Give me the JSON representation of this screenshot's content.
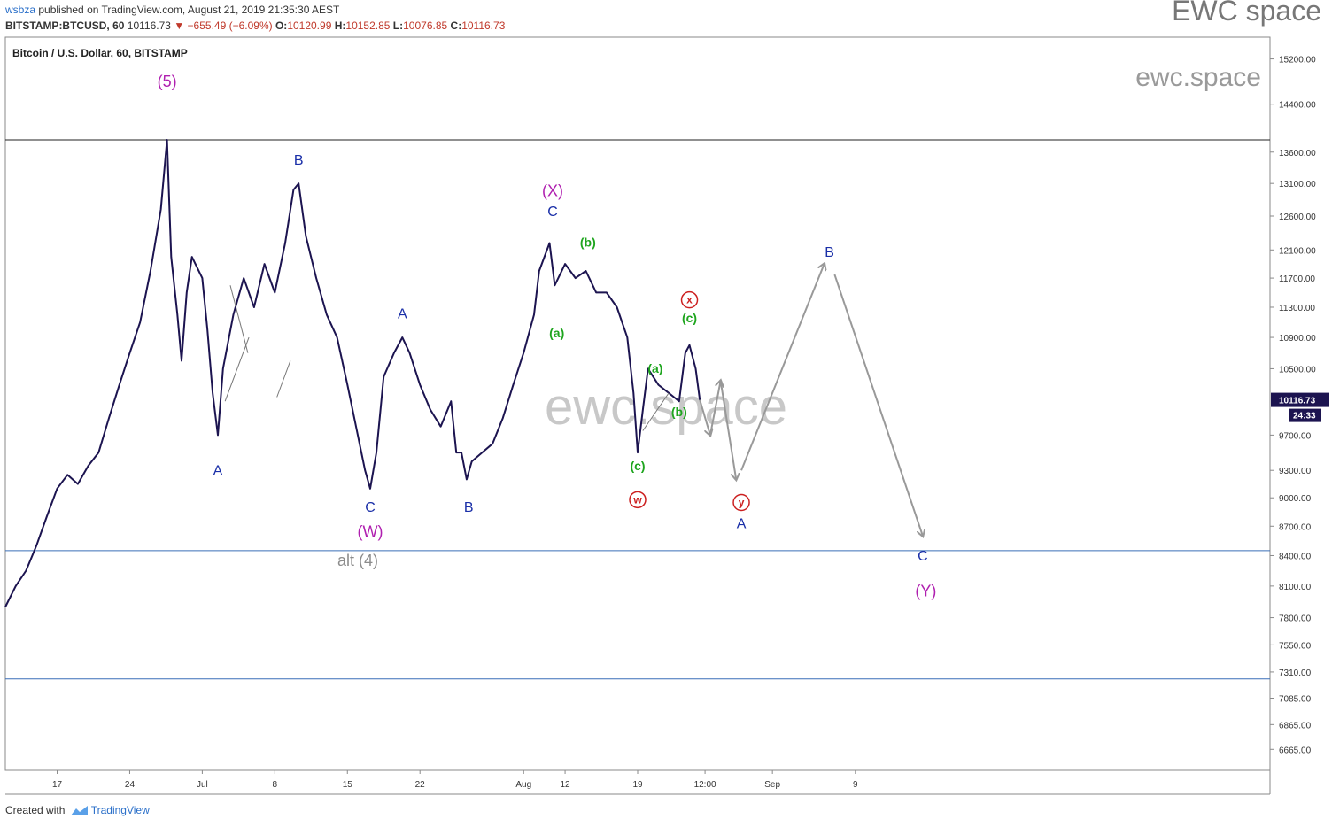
{
  "header": {
    "publisher": "wsbza",
    "published_text": "published on TradingView.com, August 21, 2019 21:35:30 AEST",
    "symbol": "BITSTAMP:BTCUSD, 60",
    "last": "10116.73",
    "change": "−655.49 (−6.09%)",
    "o_label": "O:",
    "o_value": "10120.99",
    "h_label": "H:",
    "h_value": "10152.85",
    "l_label": "L:",
    "l_value": "10076.85",
    "c_label": "C:",
    "c_value": "10116.73"
  },
  "brand_top": "EWC space",
  "footer": {
    "created_with": "Created with",
    "tradingview": "TradingView"
  },
  "chart_data": {
    "type": "line",
    "title": "Bitcoin / U.S. Dollar, 60, BITSTAMP",
    "watermark_main": "ewc.space",
    "watermark_corner": "ewc.space",
    "y_scale": "log",
    "ylim": [
      6500,
      15600
    ],
    "y_ticks": [
      "15200.00",
      "14400.00",
      "13600.00",
      "13100.00",
      "12600.00",
      "12100.00",
      "11700.00",
      "11300.00",
      "10900.00",
      "10500.00",
      "9700.00",
      "9300.00",
      "9000.00",
      "8700.00",
      "8400.00",
      "8100.00",
      "7800.00",
      "7550.00",
      "7310.00",
      "7085.00",
      "6865.00",
      "6665.00"
    ],
    "y_tick_values": [
      15200,
      14400,
      13600,
      13100,
      12600,
      12100,
      11700,
      11300,
      10900,
      10500,
      9700,
      9300,
      9000,
      8700,
      8400,
      8100,
      7800,
      7550,
      7310,
      7085,
      6865,
      6665
    ],
    "x_ticks": [
      "17",
      "24",
      "Jul",
      "8",
      "15",
      "22",
      "Aug",
      "12",
      "19",
      "12:00",
      "Sep",
      "9"
    ],
    "x_tick_days": [
      17,
      24,
      31,
      38,
      45,
      52,
      62,
      66,
      73,
      79.5,
      86,
      94
    ],
    "xlim": [
      12,
      134
    ],
    "current_price": "10116.73",
    "countdown": "24:33",
    "price_series": [
      [
        12,
        7900
      ],
      [
        13,
        8100
      ],
      [
        14,
        8250
      ],
      [
        15,
        8500
      ],
      [
        16,
        8800
      ],
      [
        17,
        9100
      ],
      [
        18,
        9250
      ],
      [
        19,
        9150
      ],
      [
        20,
        9350
      ],
      [
        21,
        9500
      ],
      [
        22,
        9900
      ],
      [
        23,
        10300
      ],
      [
        24,
        10700
      ],
      [
        25,
        11100
      ],
      [
        26,
        11800
      ],
      [
        27,
        12700
      ],
      [
        27.6,
        13800
      ],
      [
        28,
        12000
      ],
      [
        28.6,
        11200
      ],
      [
        29,
        10600
      ],
      [
        29.5,
        11500
      ],
      [
        30,
        12000
      ],
      [
        31,
        11700
      ],
      [
        31.5,
        11000
      ],
      [
        32,
        10200
      ],
      [
        32.5,
        9700
      ],
      [
        33,
        10500
      ],
      [
        34,
        11200
      ],
      [
        35,
        11700
      ],
      [
        36,
        11300
      ],
      [
        37,
        11900
      ],
      [
        38,
        11500
      ],
      [
        39,
        12200
      ],
      [
        39.8,
        13000
      ],
      [
        40.3,
        13100
      ],
      [
        41,
        12300
      ],
      [
        42,
        11700
      ],
      [
        43,
        11200
      ],
      [
        44,
        10900
      ],
      [
        45,
        10300
      ],
      [
        46,
        9700
      ],
      [
        46.7,
        9300
      ],
      [
        47.2,
        9100
      ],
      [
        47.8,
        9500
      ],
      [
        48.5,
        10400
      ],
      [
        49.5,
        10700
      ],
      [
        50.3,
        10900
      ],
      [
        51,
        10700
      ],
      [
        52,
        10300
      ],
      [
        53,
        10000
      ],
      [
        54,
        9800
      ],
      [
        55,
        10100
      ],
      [
        55.5,
        9500
      ],
      [
        56,
        9500
      ],
      [
        56.5,
        9200
      ],
      [
        57,
        9400
      ],
      [
        58,
        9500
      ],
      [
        59,
        9600
      ],
      [
        60,
        9900
      ],
      [
        61,
        10300
      ],
      [
        62,
        10700
      ],
      [
        63,
        11200
      ],
      [
        63.5,
        11800
      ],
      [
        64,
        12000
      ],
      [
        64.5,
        12200
      ],
      [
        65,
        11600
      ],
      [
        66,
        11900
      ],
      [
        67,
        11700
      ],
      [
        68,
        11800
      ],
      [
        69,
        11500
      ],
      [
        70,
        11500
      ],
      [
        71,
        11300
      ],
      [
        72,
        10900
      ],
      [
        72.6,
        10200
      ],
      [
        73,
        9500
      ],
      [
        73.5,
        10000
      ],
      [
        74,
        10500
      ],
      [
        75,
        10300
      ],
      [
        76,
        10200
      ],
      [
        77,
        10100
      ],
      [
        77.6,
        10700
      ],
      [
        78,
        10800
      ],
      [
        78.6,
        10500
      ],
      [
        79,
        10116
      ]
    ],
    "projection": [
      [
        79,
        10116
      ],
      [
        80,
        9700
      ],
      [
        81,
        10350
      ],
      [
        82.5,
        9200
      ],
      [
        83,
        9300
      ],
      [
        91,
        11900
      ],
      [
        92,
        11750
      ],
      [
        100.5,
        8600
      ]
    ],
    "levels": [
      {
        "price": 13800,
        "color": "#222222"
      },
      {
        "price": 8450,
        "color": "#3a6fb8"
      },
      {
        "price": 7250,
        "color": "#3a6fb8"
      }
    ],
    "trendlines": [
      [
        [
          38.2,
          10150
        ],
        [
          39.5,
          10600
        ]
      ],
      [
        [
          33.7,
          11600
        ],
        [
          35.4,
          10700
        ]
      ],
      [
        [
          33.2,
          10100
        ],
        [
          35.5,
          10900
        ]
      ],
      [
        [
          73.5,
          9750
        ],
        [
          76,
          10200
        ]
      ]
    ],
    "wave_labels": [
      {
        "text": "(5)",
        "day": 27.6,
        "price": 14700,
        "color": "#b020b0",
        "size": 18
      },
      {
        "text": "B",
        "day": 40.3,
        "price": 13400,
        "color": "#1a2fa8",
        "size": 16
      },
      {
        "text": "A",
        "day": 32.5,
        "price": 9250,
        "color": "#1a2fa8",
        "size": 16
      },
      {
        "text": "A",
        "day": 50.3,
        "price": 11150,
        "color": "#1a2fa8",
        "size": 16
      },
      {
        "text": "C",
        "day": 47.2,
        "price": 8850,
        "color": "#1a2fa8",
        "size": 16
      },
      {
        "text": "(W)",
        "day": 47.2,
        "price": 8590,
        "color": "#b020b0",
        "size": 18
      },
      {
        "text": "alt (4)",
        "day": 46,
        "price": 8300,
        "color": "#8c8c8c",
        "size": 18
      },
      {
        "text": "B",
        "day": 56.7,
        "price": 8850,
        "color": "#1a2fa8",
        "size": 16
      },
      {
        "text": "(X)",
        "day": 64.8,
        "price": 12900,
        "color": "#b020b0",
        "size": 18
      },
      {
        "text": "C",
        "day": 64.8,
        "price": 12600,
        "color": "#1a2fa8",
        "size": 16
      },
      {
        "text": "(b)",
        "day": 68.2,
        "price": 12150,
        "color": "#1ea51e",
        "size": 14,
        "bold": true
      },
      {
        "text": "(a)",
        "day": 65.2,
        "price": 10900,
        "color": "#1ea51e",
        "size": 14,
        "bold": true
      },
      {
        "text": "(a)",
        "day": 74.7,
        "price": 10450,
        "color": "#1ea51e",
        "size": 14,
        "bold": true
      },
      {
        "text": "(b)",
        "day": 77,
        "price": 9920,
        "color": "#1ea51e",
        "size": 14,
        "bold": true
      },
      {
        "text": "(c)",
        "day": 73,
        "price": 9300,
        "color": "#1ea51e",
        "size": 14,
        "bold": true
      },
      {
        "text": "(c)",
        "day": 78,
        "price": 11100,
        "color": "#1ea51e",
        "size": 14,
        "bold": true
      },
      {
        "text": "B",
        "day": 91.5,
        "price": 12000,
        "color": "#1a2fa8",
        "size": 16
      },
      {
        "text": "A",
        "day": 83,
        "price": 8680,
        "color": "#1a2fa8",
        "size": 16
      },
      {
        "text": "C",
        "day": 100.5,
        "price": 8350,
        "color": "#1a2fa8",
        "size": 16
      },
      {
        "text": "(Y)",
        "day": 100.8,
        "price": 8000,
        "color": "#b020b0",
        "size": 18
      }
    ],
    "circle_labels": [
      {
        "text": "w",
        "day": 73,
        "price": 8980
      },
      {
        "text": "x",
        "day": 78,
        "price": 11400
      },
      {
        "text": "y",
        "day": 83,
        "price": 8950
      }
    ]
  }
}
